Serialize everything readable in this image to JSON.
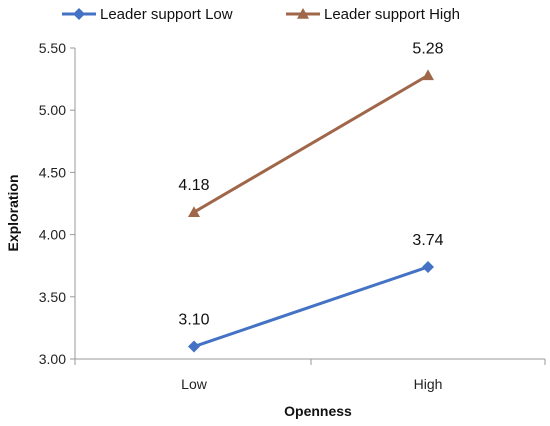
{
  "chart_data": {
    "type": "line",
    "title": "",
    "xlabel": "Openness",
    "ylabel": "Exploration",
    "categories": [
      "Low",
      "High"
    ],
    "ylim": [
      3.0,
      5.5
    ],
    "yticks": [
      "3.00",
      "3.50",
      "4.00",
      "4.50",
      "5.00",
      "5.50"
    ],
    "grid": false,
    "legend_position": "top",
    "series": [
      {
        "name": "Leader support Low",
        "values": [
          3.1,
          3.74
        ],
        "labels": [
          "3.10",
          "3.74"
        ],
        "color": "#4472C4",
        "marker": "diamond"
      },
      {
        "name": "Leader support High",
        "values": [
          4.18,
          5.28
        ],
        "labels": [
          "4.18",
          "5.28"
        ],
        "color": "#A0664A",
        "marker": "triangle"
      }
    ]
  }
}
